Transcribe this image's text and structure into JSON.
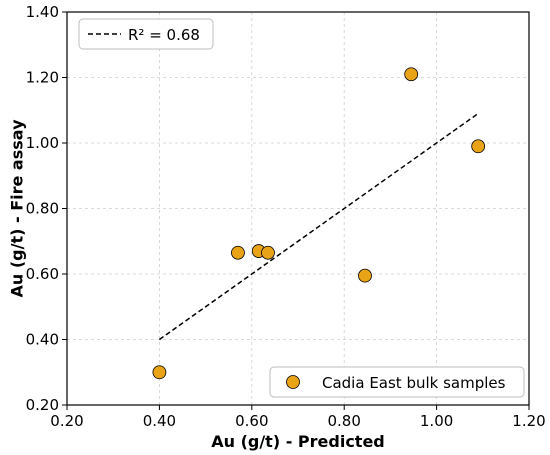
{
  "chart_data": {
    "type": "scatter",
    "title": "",
    "xlabel": "Au (g/t) - Predicted",
    "ylabel": "Au (g/t) - Fire assay",
    "xlim": [
      0.2,
      1.2
    ],
    "ylim": [
      0.2,
      1.4
    ],
    "xticks": [
      "0.20",
      "0.40",
      "0.60",
      "0.80",
      "1.00",
      "1.20"
    ],
    "yticks": [
      "0.20",
      "0.40",
      "0.60",
      "0.80",
      "1.00",
      "1.20",
      "1.40"
    ],
    "grid": true,
    "series": [
      {
        "name": "Cadia East bulk samples",
        "color": "#E8A317",
        "edge_color": "#000000",
        "points": [
          {
            "x": 0.4,
            "y": 0.3
          },
          {
            "x": 0.57,
            "y": 0.665
          },
          {
            "x": 0.615,
            "y": 0.67
          },
          {
            "x": 0.635,
            "y": 0.665
          },
          {
            "x": 0.845,
            "y": 0.595
          },
          {
            "x": 0.945,
            "y": 1.21
          },
          {
            "x": 1.09,
            "y": 0.99
          }
        ]
      }
    ],
    "fit_line": {
      "label": "R² = 0.68",
      "style": "dashed",
      "color": "#000000",
      "start": {
        "x": 0.4,
        "y": 0.4
      },
      "end": {
        "x": 1.09,
        "y": 1.09
      }
    },
    "legends": [
      {
        "position": "top-left",
        "entry": "R² = 0.68"
      },
      {
        "position": "bottom-right",
        "entry": "Cadia East bulk samples"
      }
    ]
  }
}
